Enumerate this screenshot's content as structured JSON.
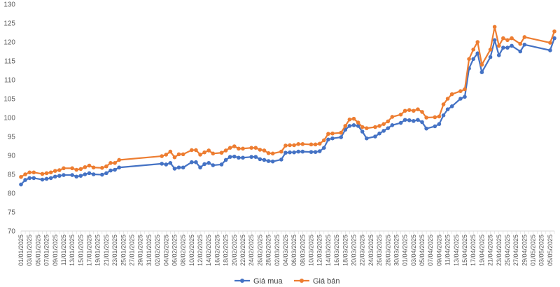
{
  "chart_data": {
    "type": "line",
    "title": "",
    "xlabel": "",
    "ylabel": "",
    "ylim": [
      70,
      130
    ],
    "yticks": [
      70,
      75,
      80,
      85,
      90,
      95,
      100,
      105,
      110,
      115,
      120,
      125,
      130
    ],
    "grid": false,
    "legend_position": "bottom",
    "x_range": [
      "01/01/2025",
      "06/05/2025"
    ],
    "x_tick_labels": [
      "01/01/2025",
      "03/01/2025",
      "05/01/2025",
      "07/01/2025",
      "09/01/2025",
      "11/01/2025",
      "13/01/2025",
      "15/01/2025",
      "17/01/2025",
      "19/01/2025",
      "21/01/2025",
      "23/01/2025",
      "25/01/2025",
      "27/01/2025",
      "29/01/2025",
      "31/01/2025",
      "02/02/2025",
      "04/02/2025",
      "06/02/2025",
      "08/02/2025",
      "10/02/2025",
      "12/02/2025",
      "14/02/2025",
      "16/02/2025",
      "18/02/2025",
      "20/02/2025",
      "22/02/2025",
      "24/02/2025",
      "26/02/2025",
      "28/02/2025",
      "02/03/2025",
      "04/03/2025",
      "06/03/2025",
      "08/03/2025",
      "10/03/2025",
      "12/03/2025",
      "14/03/2025",
      "16/03/2025",
      "18/03/2025",
      "20/03/2025",
      "22/03/2025",
      "24/03/2025",
      "26/03/2025",
      "28/03/2025",
      "30/03/2025",
      "01/04/2025",
      "03/04/2025",
      "05/04/2025",
      "07/04/2025",
      "09/04/2025",
      "11/04/2025",
      "13/04/2025",
      "15/04/2025",
      "17/04/2025",
      "19/04/2025",
      "21/04/2025",
      "23/04/2025",
      "25/04/2025",
      "27/04/2025",
      "29/04/2025",
      "01/05/2025",
      "03/05/2025",
      "05/05/2025"
    ],
    "series": [
      {
        "name": "Giá mua",
        "color": "#4472C4",
        "points": [
          [
            "01/01/2025",
            82.3
          ],
          [
            "02/01/2025",
            83.5
          ],
          [
            "03/01/2025",
            84.0
          ],
          [
            "04/01/2025",
            84.0
          ],
          [
            "06/01/2025",
            83.6
          ],
          [
            "07/01/2025",
            83.8
          ],
          [
            "08/01/2025",
            84.0
          ],
          [
            "09/01/2025",
            84.4
          ],
          [
            "10/01/2025",
            84.6
          ],
          [
            "11/01/2025",
            84.8
          ],
          [
            "13/01/2025",
            84.8
          ],
          [
            "14/01/2025",
            84.4
          ],
          [
            "15/01/2025",
            84.6
          ],
          [
            "16/01/2025",
            85.0
          ],
          [
            "17/01/2025",
            85.3
          ],
          [
            "18/01/2025",
            85.0
          ],
          [
            "20/01/2025",
            84.9
          ],
          [
            "21/01/2025",
            85.3
          ],
          [
            "22/01/2025",
            86.0
          ],
          [
            "23/01/2025",
            86.2
          ],
          [
            "24/01/2025",
            86.8
          ],
          [
            "03/02/2025",
            87.8
          ],
          [
            "04/02/2025",
            87.6
          ],
          [
            "05/02/2025",
            88.0
          ],
          [
            "06/02/2025",
            86.5
          ],
          [
            "07/02/2025",
            86.8
          ],
          [
            "08/02/2025",
            86.8
          ],
          [
            "10/02/2025",
            88.2
          ],
          [
            "11/02/2025",
            88.2
          ],
          [
            "12/02/2025",
            86.8
          ],
          [
            "13/02/2025",
            87.7
          ],
          [
            "14/02/2025",
            88.0
          ],
          [
            "15/02/2025",
            87.4
          ],
          [
            "17/02/2025",
            87.6
          ],
          [
            "18/02/2025",
            88.8
          ],
          [
            "19/02/2025",
            89.6
          ],
          [
            "20/02/2025",
            89.7
          ],
          [
            "21/02/2025",
            89.4
          ],
          [
            "22/02/2025",
            89.4
          ],
          [
            "24/02/2025",
            89.6
          ],
          [
            "25/02/2025",
            89.6
          ],
          [
            "26/02/2025",
            89.0
          ],
          [
            "27/02/2025",
            88.8
          ],
          [
            "28/02/2025",
            88.5
          ],
          [
            "01/03/2025",
            88.4
          ],
          [
            "03/03/2025",
            88.9
          ],
          [
            "04/03/2025",
            90.7
          ],
          [
            "05/03/2025",
            90.8
          ],
          [
            "06/03/2025",
            90.8
          ],
          [
            "07/03/2025",
            91.0
          ],
          [
            "08/03/2025",
            91.0
          ],
          [
            "10/03/2025",
            90.9
          ],
          [
            "11/03/2025",
            90.9
          ],
          [
            "12/03/2025",
            91.1
          ],
          [
            "13/03/2025",
            92.0
          ],
          [
            "14/03/2025",
            94.2
          ],
          [
            "15/03/2025",
            94.5
          ],
          [
            "17/03/2025",
            94.8
          ],
          [
            "18/03/2025",
            96.8
          ],
          [
            "19/03/2025",
            97.8
          ],
          [
            "20/03/2025",
            98.0
          ],
          [
            "21/03/2025",
            97.8
          ],
          [
            "22/03/2025",
            96.3
          ],
          [
            "23/03/2025",
            94.5
          ],
          [
            "25/03/2025",
            95.0
          ],
          [
            "26/03/2025",
            95.8
          ],
          [
            "27/03/2025",
            96.5
          ],
          [
            "28/03/2025",
            97.2
          ],
          [
            "29/03/2025",
            98.0
          ],
          [
            "31/03/2025",
            98.6
          ],
          [
            "01/04/2025",
            99.4
          ],
          [
            "02/04/2025",
            99.3
          ],
          [
            "03/04/2025",
            99.1
          ],
          [
            "04/04/2025",
            99.4
          ],
          [
            "05/04/2025",
            98.8
          ],
          [
            "06/04/2025",
            97.1
          ],
          [
            "08/04/2025",
            97.7
          ],
          [
            "09/04/2025",
            98.3
          ],
          [
            "10/04/2025",
            100.6
          ],
          [
            "11/04/2025",
            102.2
          ],
          [
            "12/04/2025",
            103.0
          ],
          [
            "14/04/2025",
            105.0
          ],
          [
            "15/04/2025",
            105.5
          ],
          [
            "16/04/2025",
            113.0
          ],
          [
            "17/04/2025",
            115.5
          ],
          [
            "18/04/2025",
            117.0
          ],
          [
            "19/04/2025",
            112.0
          ],
          [
            "21/04/2025",
            116.0
          ],
          [
            "22/04/2025",
            120.5
          ],
          [
            "23/04/2025",
            116.5
          ],
          [
            "24/04/2025",
            118.5
          ],
          [
            "25/04/2025",
            118.5
          ],
          [
            "26/04/2025",
            119.0
          ],
          [
            "28/04/2025",
            117.5
          ],
          [
            "29/04/2025",
            119.3
          ],
          [
            "05/05/2025",
            117.8
          ],
          [
            "06/05/2025",
            121.0
          ]
        ]
      },
      {
        "name": "Giá bán",
        "color": "#ED7D31",
        "points": [
          [
            "01/01/2025",
            84.3
          ],
          [
            "02/01/2025",
            85.0
          ],
          [
            "03/01/2025",
            85.5
          ],
          [
            "04/01/2025",
            85.5
          ],
          [
            "06/01/2025",
            85.1
          ],
          [
            "07/01/2025",
            85.3
          ],
          [
            "08/01/2025",
            85.5
          ],
          [
            "09/01/2025",
            85.9
          ],
          [
            "10/01/2025",
            86.1
          ],
          [
            "11/01/2025",
            86.6
          ],
          [
            "13/01/2025",
            86.6
          ],
          [
            "14/01/2025",
            86.2
          ],
          [
            "15/01/2025",
            86.4
          ],
          [
            "16/01/2025",
            86.9
          ],
          [
            "17/01/2025",
            87.3
          ],
          [
            "18/01/2025",
            86.8
          ],
          [
            "20/01/2025",
            86.7
          ],
          [
            "21/01/2025",
            87.1
          ],
          [
            "22/01/2025",
            88.0
          ],
          [
            "23/01/2025",
            88.0
          ],
          [
            "24/01/2025",
            88.8
          ],
          [
            "03/02/2025",
            89.8
          ],
          [
            "04/02/2025",
            90.2
          ],
          [
            "05/02/2025",
            91.0
          ],
          [
            "06/02/2025",
            89.5
          ],
          [
            "07/02/2025",
            90.3
          ],
          [
            "08/02/2025",
            90.3
          ],
          [
            "10/02/2025",
            91.4
          ],
          [
            "11/02/2025",
            91.4
          ],
          [
            "12/02/2025",
            90.2
          ],
          [
            "13/02/2025",
            90.8
          ],
          [
            "14/02/2025",
            91.3
          ],
          [
            "15/02/2025",
            90.5
          ],
          [
            "17/02/2025",
            90.7
          ],
          [
            "18/02/2025",
            91.3
          ],
          [
            "19/02/2025",
            92.0
          ],
          [
            "20/02/2025",
            92.4
          ],
          [
            "21/02/2025",
            91.8
          ],
          [
            "22/02/2025",
            91.8
          ],
          [
            "24/02/2025",
            92.0
          ],
          [
            "25/02/2025",
            92.0
          ],
          [
            "26/02/2025",
            91.5
          ],
          [
            "27/02/2025",
            91.3
          ],
          [
            "28/02/2025",
            90.6
          ],
          [
            "01/03/2025",
            90.5
          ],
          [
            "03/03/2025",
            91.0
          ],
          [
            "04/03/2025",
            92.6
          ],
          [
            "05/03/2025",
            92.7
          ],
          [
            "06/03/2025",
            92.7
          ],
          [
            "07/03/2025",
            93.0
          ],
          [
            "08/03/2025",
            93.0
          ],
          [
            "10/03/2025",
            92.9
          ],
          [
            "11/03/2025",
            92.9
          ],
          [
            "12/03/2025",
            93.1
          ],
          [
            "13/03/2025",
            94.0
          ],
          [
            "14/03/2025",
            95.7
          ],
          [
            "15/03/2025",
            95.8
          ],
          [
            "17/03/2025",
            96.0
          ],
          [
            "18/03/2025",
            97.8
          ],
          [
            "19/03/2025",
            99.5
          ],
          [
            "20/03/2025",
            99.7
          ],
          [
            "21/03/2025",
            98.7
          ],
          [
            "22/03/2025",
            97.5
          ],
          [
            "23/03/2025",
            97.2
          ],
          [
            "25/03/2025",
            97.5
          ],
          [
            "26/03/2025",
            97.8
          ],
          [
            "27/03/2025",
            98.3
          ],
          [
            "28/03/2025",
            99.0
          ],
          [
            "29/03/2025",
            100.2
          ],
          [
            "31/03/2025",
            100.8
          ],
          [
            "01/04/2025",
            101.8
          ],
          [
            "02/04/2025",
            102.0
          ],
          [
            "03/04/2025",
            101.8
          ],
          [
            "04/04/2025",
            102.2
          ],
          [
            "05/04/2025",
            101.5
          ],
          [
            "06/04/2025",
            100.0
          ],
          [
            "08/04/2025",
            100.1
          ],
          [
            "09/04/2025",
            100.3
          ],
          [
            "10/04/2025",
            103.5
          ],
          [
            "11/04/2025",
            105.0
          ],
          [
            "12/04/2025",
            106.2
          ],
          [
            "14/04/2025",
            107.0
          ],
          [
            "15/04/2025",
            107.5
          ],
          [
            "16/04/2025",
            115.5
          ],
          [
            "17/04/2025",
            118.0
          ],
          [
            "18/04/2025",
            120.0
          ],
          [
            "19/04/2025",
            114.0
          ],
          [
            "21/04/2025",
            118.0
          ],
          [
            "22/04/2025",
            124.0
          ],
          [
            "23/04/2025",
            119.0
          ],
          [
            "24/04/2025",
            121.0
          ],
          [
            "25/04/2025",
            120.5
          ],
          [
            "26/04/2025",
            121.0
          ],
          [
            "28/04/2025",
            119.5
          ],
          [
            "29/04/2025",
            121.3
          ],
          [
            "05/05/2025",
            119.8
          ],
          [
            "06/05/2025",
            122.8
          ]
        ]
      }
    ]
  }
}
